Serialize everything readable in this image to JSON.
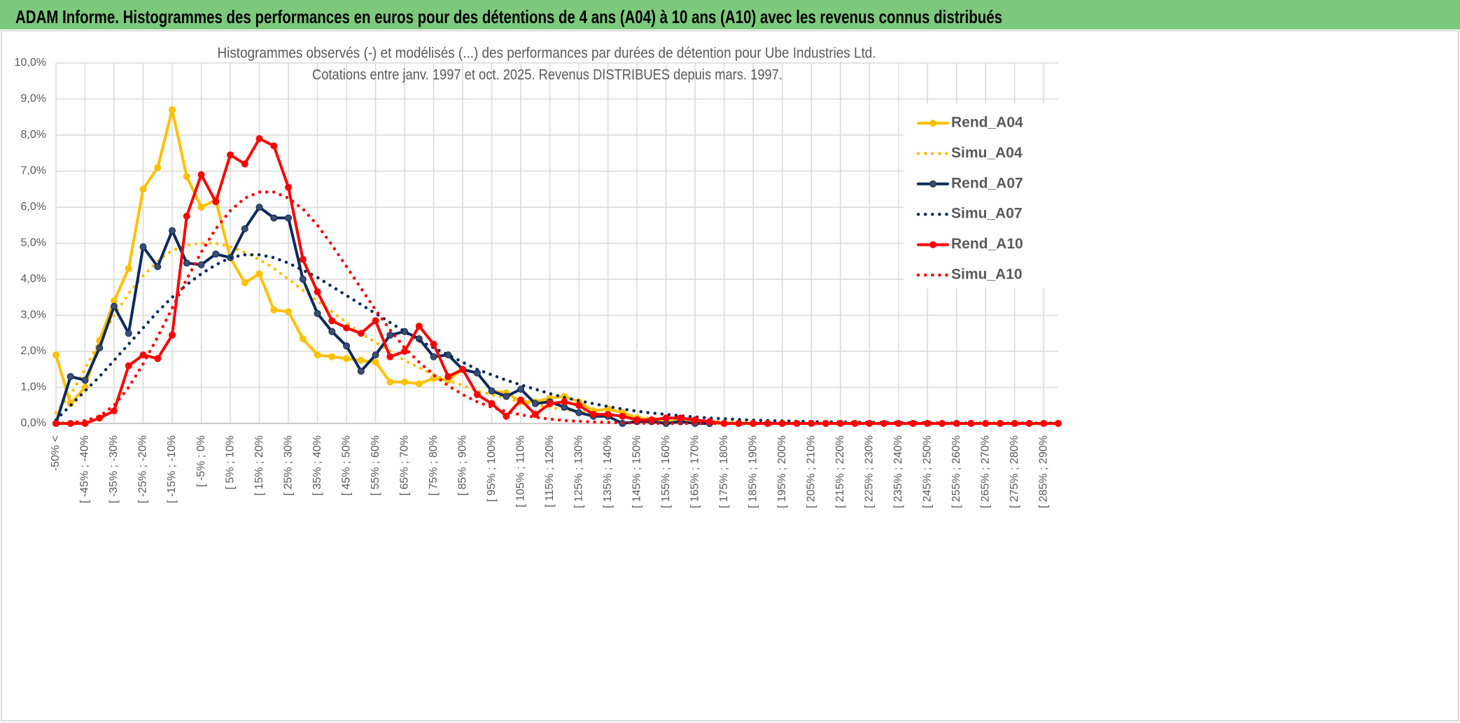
{
  "header": {
    "title": "ADAM Informe. Histogrammes des performances en euros pour des détentions de 4 ans (A04) à 10 ans (A10) avec les revenus connus distribués"
  },
  "chart_data": {
    "type": "line",
    "title": "Histogrammes observés (-) et modélisés (...) des performances par durées de détention pour Ube Industries Ltd.",
    "subtitle": "Cotations entre janv. 1997 et oct. 2025. Revenus DISTRIBUES depuis mars. 1997.",
    "categories": [
      "-50% <",
      null,
      "[ -45% ; -40%",
      null,
      "[ -35% ; -30%",
      null,
      "[ -25% ; -20%",
      null,
      "[ -15% ; -10%",
      null,
      "[ -5% ; 0%",
      null,
      "[ 5% ; 10%",
      null,
      "[ 15% ; 20%",
      null,
      "[ 25% ; 30%",
      null,
      "[ 35% ; 40%",
      null,
      "[ 45% ; 50%",
      null,
      "[ 55% ; 60%",
      null,
      "[ 65% ; 70%",
      null,
      "[ 75% ; 80%",
      null,
      "[ 85% ; 90%",
      null,
      "[ 95% ; 100%",
      null,
      "[ 105% ; 110%",
      null,
      "[ 115% ; 120%",
      null,
      "[ 125% ; 130%",
      null,
      "[ 135% ; 140%",
      null,
      "[ 145% ; 150%",
      null,
      "[ 155% ; 160%",
      null,
      "[ 165% ; 170%",
      null,
      "[ 175% ; 180%",
      null,
      "[ 185% ; 190%",
      null,
      "[ 195% ; 200%",
      null,
      "[ 205% ; 210%",
      null,
      "[ 215% ; 220%",
      null,
      "[ 225% ; 230%",
      null,
      "[ 235% ; 240%",
      null,
      "[ 245% ; 250%",
      null,
      "[ 255% ; 260%",
      null,
      "[ 265% ; 270%",
      null,
      "[ 275% ; 280%",
      null,
      "[ 285% ; 290%",
      null
    ],
    "series": [
      {
        "name": "Rend_A04",
        "color": "#ffc000",
        "line_style": "solid",
        "markers": true,
        "values": [
          1.9,
          0.55,
          1.0,
          2.3,
          3.4,
          4.3,
          6.5,
          7.1,
          8.7,
          6.85,
          6.0,
          6.2,
          4.6,
          3.9,
          4.15,
          3.15,
          3.1,
          2.35,
          1.9,
          1.85,
          1.8,
          1.75,
          1.7,
          1.15,
          1.15,
          1.1,
          1.25,
          1.2,
          1.5,
          1.4,
          0.9,
          0.85,
          0.6,
          0.6,
          0.7,
          0.75,
          0.6,
          0.35,
          0.4,
          0.3,
          0.15,
          0.1,
          0.05,
          0.05,
          0.05,
          0,
          0,
          0,
          0,
          0,
          0,
          0,
          0,
          0,
          0,
          0,
          0,
          0,
          0,
          0,
          0,
          0,
          0,
          0,
          0,
          0,
          0,
          0,
          0,
          0
        ]
      },
      {
        "name": "Simu_A04",
        "color": "#ffc000",
        "line_style": "dotted",
        "markers": false,
        "values": [
          0.3,
          0.8,
          1.5,
          2.3,
          3.0,
          3.6,
          4.1,
          4.5,
          4.8,
          4.95,
          5.0,
          5.0,
          4.9,
          4.75,
          4.55,
          4.3,
          4.0,
          3.7,
          3.4,
          3.1,
          2.8,
          2.5,
          2.25,
          2.0,
          1.75,
          1.55,
          1.35,
          1.2,
          1.05,
          0.9,
          0.8,
          0.7,
          0.6,
          0.52,
          0.45,
          0.38,
          0.33,
          0.28,
          0.24,
          0.2,
          0.17,
          0.14,
          0.12,
          0.1,
          0.08,
          0.07,
          0.06,
          0.05,
          0.04,
          0.03,
          0.03,
          0.02,
          0.02,
          0.02,
          0.01,
          0.01,
          0.01,
          0.01,
          0.01,
          0.01,
          0,
          0,
          0,
          0,
          0,
          0,
          0,
          0,
          0,
          0
        ]
      },
      {
        "name": "Rend_A07",
        "color": "#0d2a5c",
        "line_style": "solid",
        "markers": true,
        "values": [
          0,
          1.3,
          1.2,
          2.1,
          3.25,
          2.5,
          4.9,
          4.35,
          5.35,
          4.45,
          4.4,
          4.7,
          4.6,
          5.4,
          6.0,
          5.7,
          5.7,
          4.0,
          3.05,
          2.55,
          2.15,
          1.45,
          1.9,
          2.45,
          2.55,
          2.35,
          1.85,
          1.9,
          1.5,
          1.4,
          0.9,
          0.75,
          0.95,
          0.55,
          0.6,
          0.45,
          0.3,
          0.2,
          0.2,
          0.0,
          0.05,
          0.05,
          0.0,
          0.05,
          0.0,
          0,
          null,
          null,
          null,
          null,
          null,
          null,
          null,
          null,
          null,
          null,
          null,
          null,
          null,
          null,
          null,
          null,
          null,
          null,
          null,
          null,
          null,
          null,
          null,
          null
        ]
      },
      {
        "name": "Simu_A07",
        "color": "#0d2a5c",
        "line_style": "dotted",
        "markers": false,
        "values": [
          0.1,
          0.5,
          0.9,
          1.3,
          1.75,
          2.2,
          2.65,
          3.1,
          3.5,
          3.85,
          4.15,
          4.4,
          4.6,
          4.68,
          4.68,
          4.6,
          4.45,
          4.25,
          4.05,
          3.8,
          3.55,
          3.3,
          3.05,
          2.8,
          2.55,
          2.3,
          2.1,
          1.9,
          1.7,
          1.5,
          1.35,
          1.2,
          1.07,
          0.95,
          0.83,
          0.72,
          0.63,
          0.55,
          0.47,
          0.4,
          0.34,
          0.29,
          0.25,
          0.21,
          0.18,
          0.15,
          0.13,
          0.11,
          0.09,
          0.08,
          0.07,
          0.06,
          0.05,
          0.04,
          0.04,
          0.03,
          0.03,
          0.02,
          0.02,
          0.02,
          0.02,
          0.01,
          0.01,
          0.01,
          0.01,
          0.01,
          0.01,
          0.01,
          0.01,
          0.01
        ]
      },
      {
        "name": "Rend_A10",
        "color": "#ff0000",
        "line_style": "solid",
        "markers": true,
        "values": [
          0,
          0,
          0,
          0.15,
          0.35,
          1.6,
          1.9,
          1.8,
          2.45,
          5.75,
          6.9,
          6.15,
          7.45,
          7.2,
          7.9,
          7.7,
          6.55,
          4.55,
          3.65,
          2.85,
          2.65,
          2.5,
          2.85,
          1.85,
          2.0,
          2.7,
          2.2,
          1.3,
          1.5,
          0.8,
          0.55,
          0.2,
          0.65,
          0.25,
          0.55,
          0.6,
          0.5,
          0.25,
          0.25,
          0.2,
          0.1,
          0.1,
          0.15,
          0.15,
          0.1,
          0.05,
          0,
          0,
          0,
          0,
          0,
          0,
          0,
          0,
          0,
          0,
          0,
          0,
          0,
          0,
          0,
          0,
          0,
          0,
          0,
          0,
          0,
          0,
          0,
          0
        ]
      },
      {
        "name": "Simu_A10",
        "color": "#ff0000",
        "line_style": "dotted",
        "markers": false,
        "values": [
          0,
          0.02,
          0.08,
          0.2,
          0.5,
          1.0,
          1.65,
          2.4,
          3.2,
          4.0,
          4.75,
          5.4,
          5.9,
          6.25,
          6.42,
          6.42,
          6.25,
          5.95,
          5.5,
          4.95,
          4.35,
          3.75,
          3.15,
          2.6,
          2.1,
          1.7,
          1.35,
          1.05,
          0.8,
          0.6,
          0.45,
          0.33,
          0.24,
          0.17,
          0.12,
          0.08,
          0.06,
          0.04,
          0.03,
          0.02,
          0.01,
          0,
          0,
          0,
          0,
          0,
          0,
          0,
          0,
          0,
          0,
          0,
          0,
          0,
          0,
          0,
          0,
          0,
          0,
          0,
          0,
          0,
          0,
          0,
          0,
          0,
          0,
          0,
          0,
          0
        ]
      }
    ],
    "ylim": [
      0,
      10
    ],
    "yticks": [
      {
        "value": 0,
        "label": "0,0%"
      },
      {
        "value": 1,
        "label": "1,0%"
      },
      {
        "value": 2,
        "label": "2,0%"
      },
      {
        "value": 3,
        "label": "3,0%"
      },
      {
        "value": 4,
        "label": "4,0%"
      },
      {
        "value": 5,
        "label": "5,0%"
      },
      {
        "value": 6,
        "label": "6,0%"
      },
      {
        "value": 7,
        "label": "7,0%"
      },
      {
        "value": 8,
        "label": "8,0%"
      },
      {
        "value": 9,
        "label": "9,0%"
      },
      {
        "value": 10,
        "label": "10,0%"
      }
    ],
    "grid": true,
    "legend": "right"
  }
}
